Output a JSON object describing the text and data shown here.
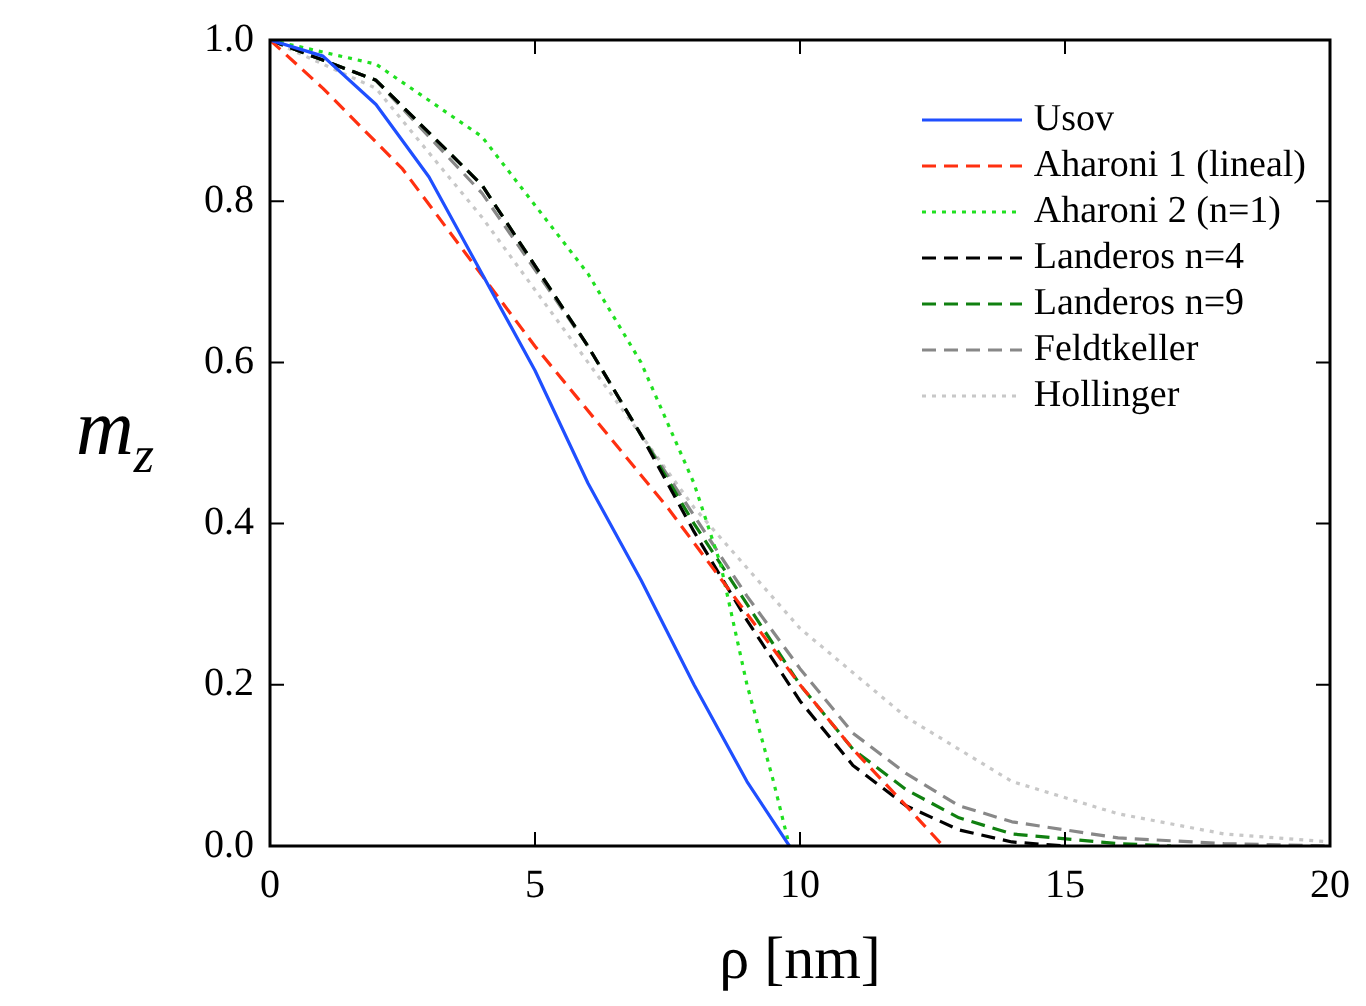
{
  "chart_data": {
    "type": "line",
    "xlabel": "ρ [nm]",
    "ylabel": "m$_{z}$",
    "xlim": [
      0,
      20
    ],
    "ylim": [
      0,
      1
    ],
    "xticks": [
      0,
      5,
      10,
      15,
      20
    ],
    "yticks": [
      {
        "value": 0,
        "label": "0.0"
      },
      {
        "value": 0.2,
        "label": "0.2"
      },
      {
        "value": 0.4,
        "label": "0.4"
      },
      {
        "value": 0.6,
        "label": "0.6"
      },
      {
        "value": 0.8,
        "label": "0.8"
      },
      {
        "value": 1,
        "label": "1.0"
      }
    ],
    "grid": false,
    "legend": "top right",
    "marker": "none",
    "series": [
      {
        "name": "Usov",
        "color": "#1f4fff",
        "line_style": "solid",
        "x": [
          0,
          1,
          2,
          3,
          4,
          5,
          6,
          7,
          8,
          9,
          9.8
        ],
        "values": [
          1,
          0.98,
          0.92,
          0.83,
          0.71,
          0.59,
          0.45,
          0.33,
          0.2,
          0.08,
          0
        ]
      },
      {
        "name": "Aharoni 1 (lineal)",
        "color": "#ff3010",
        "line_style": "dashed",
        "x": [
          0,
          1,
          2.5,
          5,
          7.5,
          10,
          11,
          12,
          12.7
        ],
        "values": [
          1,
          0.94,
          0.84,
          0.62,
          0.42,
          0.2,
          0.12,
          0.05,
          0
        ]
      },
      {
        "name": "Aharoni 2 (n=1)",
        "color": "#20e020",
        "line_style": "dotted",
        "x": [
          0,
          2,
          4,
          6,
          7,
          8,
          8.5,
          9,
          9.5,
          9.8
        ],
        "values": [
          1,
          0.97,
          0.88,
          0.71,
          0.6,
          0.45,
          0.35,
          0.2,
          0.08,
          0
        ]
      },
      {
        "name": "Landeros n=4",
        "color": "#000000",
        "line_style": "dashed",
        "x": [
          0,
          2,
          4,
          6,
          7,
          8,
          9,
          10,
          11,
          12,
          13,
          14,
          15
        ],
        "values": [
          1,
          0.95,
          0.82,
          0.62,
          0.51,
          0.39,
          0.28,
          0.18,
          0.1,
          0.05,
          0.02,
          0.005,
          0
        ]
      },
      {
        "name": "Landeros n=9",
        "color": "#108010",
        "line_style": "dashed",
        "x": [
          0,
          2,
          4,
          6,
          7,
          8,
          9,
          10,
          11,
          12,
          13,
          14,
          16,
          17
        ],
        "values": [
          1,
          0.95,
          0.82,
          0.62,
          0.51,
          0.4,
          0.3,
          0.2,
          0.12,
          0.07,
          0.035,
          0.015,
          0.003,
          0
        ]
      },
      {
        "name": "Feldtkeller",
        "color": "#888888",
        "line_style": "dashed",
        "x": [
          0,
          2,
          4,
          6,
          7,
          8,
          9,
          10,
          11,
          12,
          13,
          14,
          16,
          18,
          20
        ],
        "values": [
          1,
          0.95,
          0.81,
          0.62,
          0.51,
          0.41,
          0.31,
          0.22,
          0.14,
          0.09,
          0.05,
          0.03,
          0.01,
          0.003,
          0
        ]
      },
      {
        "name": "Hollinger",
        "color": "#c8c8c8",
        "line_style": "dotted",
        "x": [
          0,
          2,
          4,
          6,
          8,
          10,
          12,
          14,
          16,
          18,
          20
        ],
        "values": [
          1,
          0.94,
          0.78,
          0.6,
          0.42,
          0.27,
          0.16,
          0.08,
          0.04,
          0.015,
          0.005
        ]
      }
    ]
  }
}
